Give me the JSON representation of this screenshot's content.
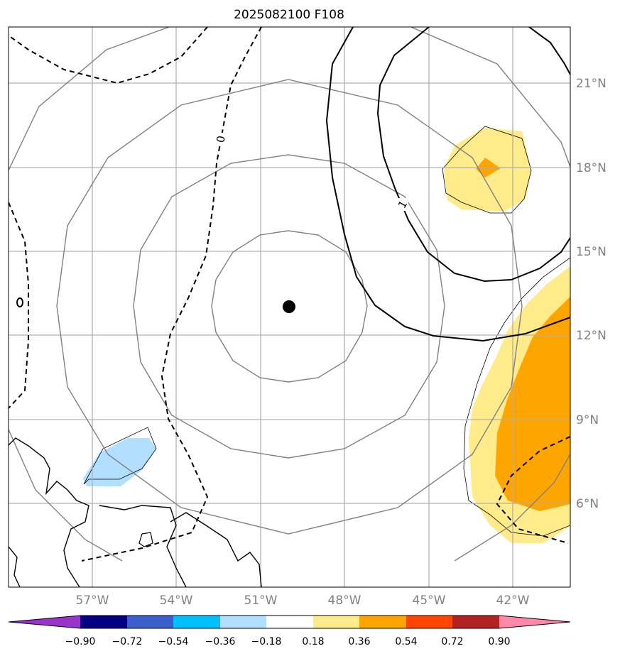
{
  "title": "2025082100 F108",
  "map": {
    "lon_range": [
      -59.5,
      -39.5
    ],
    "lat_range": [
      3.0,
      23.0
    ],
    "lon_ticks": [
      "57°W",
      "54°W",
      "51°W",
      "48°W",
      "45°W",
      "42°W"
    ],
    "lat_ticks": [
      "21°N",
      "18°N",
      "15°N",
      "12°N",
      "9°N",
      "6°N"
    ],
    "center_marker": {
      "lon": -49.5,
      "lat": 13.0
    },
    "contour_labels": [
      "0",
      "1"
    ],
    "grid": true
  },
  "colorbar": {
    "ticks": [
      "−0.90",
      "−0.72",
      "−0.54",
      "−0.36",
      "−0.18",
      "0.18",
      "0.36",
      "0.54",
      "0.72",
      "0.90"
    ],
    "colors": [
      "#9933cc",
      "#000080",
      "#3a5fcd",
      "#00bfff",
      "#b2dfff",
      "#ffffff",
      "#ffeb8a",
      "#ffa500",
      "#ff4500",
      "#b22222",
      "#ff88aa"
    ]
  }
}
